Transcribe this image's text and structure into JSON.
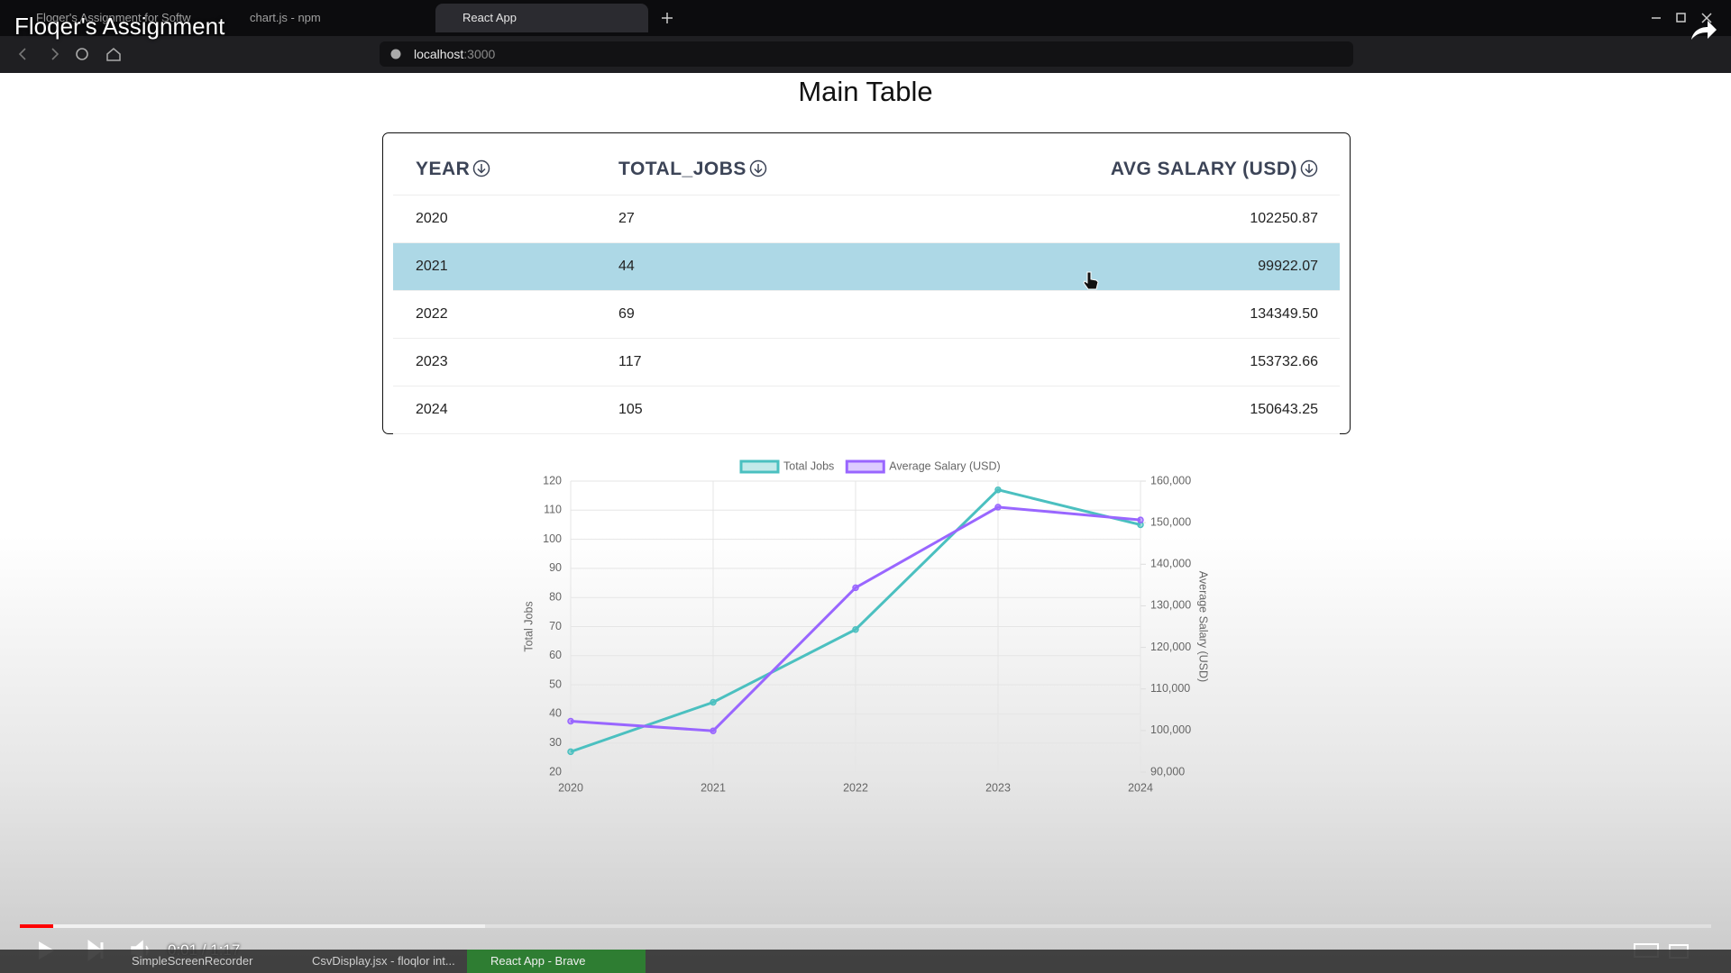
{
  "video": {
    "title": "Floqer's Assignment",
    "time": "0:01 / 1:17"
  },
  "browser": {
    "tabs": [
      "Floqer's Assignment for Softw",
      "chart.js - npm",
      "React App"
    ],
    "url_host": "localhost",
    "url_port": ":3000"
  },
  "page": {
    "heading": "Main Table",
    "table": {
      "headers": [
        "YEAR",
        "TOTAL_JOBS",
        "AVG SALARY (USD)"
      ],
      "rows": [
        [
          "2020",
          "27",
          "102250.87"
        ],
        [
          "2021",
          "44",
          "99922.07"
        ],
        [
          "2022",
          "69",
          "134349.50"
        ],
        [
          "2023",
          "117",
          "153732.66"
        ],
        [
          "2024",
          "105",
          "150643.25"
        ]
      ]
    }
  },
  "chart_data": {
    "type": "line",
    "categories": [
      "2020",
      "2021",
      "2022",
      "2023",
      "2024"
    ],
    "series": [
      {
        "name": "Total Jobs",
        "color": "#4bc0c0",
        "values": [
          27,
          44,
          69,
          117,
          105
        ]
      },
      {
        "name": "Average Salary (USD)",
        "color": "#9966ff",
        "axis": "y2",
        "values": [
          102250.87,
          99922.07,
          134349.5,
          153732.66,
          150643.25
        ]
      }
    ],
    "ylabel": "Total Jobs",
    "y2label": "Average Salary (USD)",
    "ylim": [
      20,
      120
    ],
    "yticks": [
      20,
      30,
      40,
      50,
      60,
      70,
      80,
      90,
      100,
      110,
      120
    ],
    "y2lim": [
      90000,
      160000
    ],
    "y2ticks": [
      {
        "value": 90000,
        "label": "90,000"
      },
      {
        "value": 100000,
        "label": "100,000"
      },
      {
        "value": 110000,
        "label": "110,000"
      },
      {
        "value": 120000,
        "label": "120,000"
      },
      {
        "value": 130000,
        "label": "130,000"
      },
      {
        "value": 140000,
        "label": "140,000"
      },
      {
        "value": 150000,
        "label": "150,000"
      },
      {
        "value": 160000,
        "label": "160,000"
      }
    ],
    "grid": true,
    "legend": "top"
  },
  "taskbar": {
    "items": [
      "SimpleScreenRecorder",
      "CsvDisplay.jsx - floqlor int...",
      "React App - Brave"
    ]
  }
}
